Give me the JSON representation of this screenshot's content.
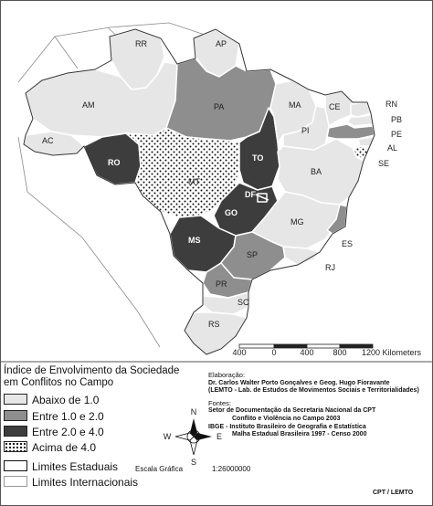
{
  "map": {
    "states": {
      "RR": "RR",
      "AP": "AP",
      "AM": "AM",
      "PA": "PA",
      "AC": "AC",
      "RO": "RO",
      "MT": "MT",
      "TO": "TO",
      "MA": "MA",
      "PI": "PI",
      "CE": "CE",
      "RN": "RN",
      "PB": "PB",
      "PE": "PE",
      "AL": "AL",
      "SE": "SE",
      "BA": "BA",
      "DF": "DF",
      "GO": "GO",
      "MG": "MG",
      "ES": "ES",
      "MS": "MS",
      "SP": "SP",
      "RJ": "RJ",
      "PR": "PR",
      "SC": "SC",
      "RS": "RS"
    },
    "state_class": {
      "RR": 1,
      "AP": 1,
      "AM": 1,
      "PA": 2,
      "AC": 1,
      "RO": 3,
      "MT": 4,
      "TO": 3,
      "MA": 1,
      "PI": 1,
      "CE": 1,
      "RN": 1,
      "PB": 1,
      "PE": 2,
      "AL": 1,
      "SE": 4,
      "BA": 1,
      "DF": 3,
      "GO": 3,
      "MG": 1,
      "ES": 2,
      "MS": 3,
      "SP": 2,
      "RJ": 1,
      "PR": 2,
      "SC": 1,
      "RS": 1
    },
    "colors": {
      "class1": "#e6e6e6",
      "class2": "#8e8e8e",
      "class3": "#3d3d3d",
      "class4_dots": "#111111",
      "border": "#ffffff",
      "outline": "#333333"
    }
  },
  "scale_bar": {
    "ticks": [
      "400",
      "0",
      "400",
      "800",
      "1200 Kilometers"
    ],
    "title": "Escala Gráfica",
    "ratio": "1:26000000"
  },
  "compass": {
    "north": "N",
    "south": "S",
    "east": "E",
    "west": "W"
  },
  "legend": {
    "title_line1": "Índice de Envolvimento da Sociedade",
    "title_line2": "em Conflitos no Campo",
    "classes": [
      "Abaixo de 1.0",
      "Entre 1.0 e 2.0",
      "Entre 2.0 e 4.0",
      "Acima de 4.0"
    ],
    "limits": [
      "Limites Estaduais",
      "Limites Internacionais"
    ]
  },
  "credits": {
    "elab_label": "Elaboração:",
    "elab_line1": "Dr. Carlos Walter Porto Gonçalves e Geog. Hugo Fioravante",
    "elab_line2": "(LEMTO - Lab. de Estudos de Movimentos Sociais e Territorialidades)",
    "fontes_label": "Fontes:",
    "fontes_line1": "Setor de Documentação da Secretaria Nacional da CPT",
    "fontes_line2": "Conflito e Violência no Campo 2003",
    "fontes_line3": "IBGE - Instituto Brasileiro de Geografia e Estatística",
    "fontes_line4": "Malha Estadual Brasileira 1997 - Censo 2000"
  },
  "footer": {
    "cpt": "CPT / LEMTO"
  }
}
